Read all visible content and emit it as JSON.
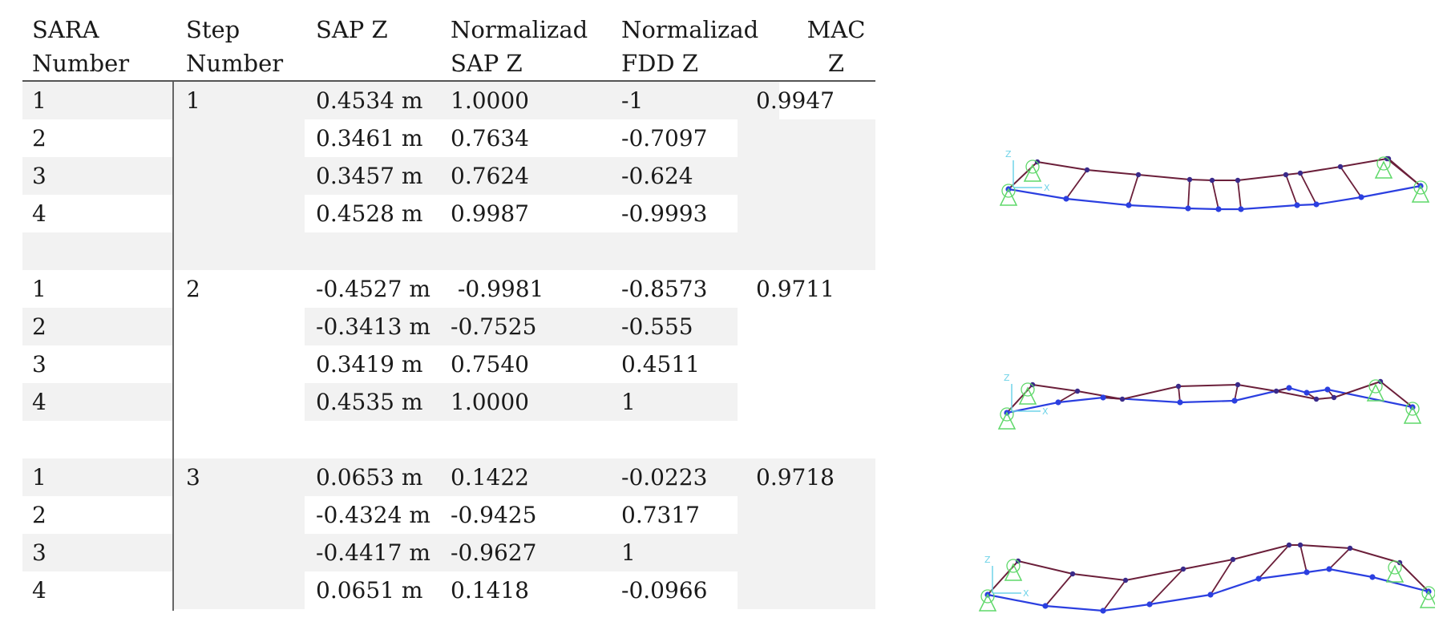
{
  "headers": [
    {
      "label": "SARA\nNumber"
    },
    {
      "label": "Step\nNumber"
    },
    {
      "label": "SAP Z"
    },
    {
      "label": "Normalizad\nSAP Z"
    },
    {
      "label": "Normalizad\nFDD Z"
    },
    {
      "label": "MAC\nZ"
    }
  ],
  "rows": [
    {
      "sara": "1",
      "step": "1",
      "sap": "0.4534 m",
      "nsap": "1.0000",
      "nfdd": "-1",
      "mac": "0.9947"
    },
    {
      "sara": "2",
      "step": "",
      "sap": "0.3461 m",
      "nsap": "0.7634",
      "nfdd": "-0.7097",
      "mac": ""
    },
    {
      "sara": "3",
      "step": "",
      "sap": "0.3457 m",
      "nsap": "0.7624",
      "nfdd": "-0.624",
      "mac": ""
    },
    {
      "sara": "4",
      "step": "",
      "sap": "0.4528 m",
      "nsap": "0.9987",
      "nfdd": "-0.9993",
      "mac": ""
    },
    {
      "sara": "",
      "step": "",
      "sap": "",
      "nsap": "",
      "nfdd": "",
      "mac": ""
    },
    {
      "sara": "1",
      "step": "2",
      "sap": "-0.4527 m",
      "nsap": " -0.9981",
      "nfdd": "-0.8573",
      "mac": "0.9711"
    },
    {
      "sara": "2",
      "step": "",
      "sap": "-0.3413 m",
      "nsap": "-0.7525",
      "nfdd": "-0.555",
      "mac": ""
    },
    {
      "sara": "3",
      "step": "",
      "sap": "0.3419 m",
      "nsap": "0.7540",
      "nfdd": "0.4511",
      "mac": ""
    },
    {
      "sara": "4",
      "step": "",
      "sap": "0.4535 m",
      "nsap": "1.0000",
      "nfdd": "1",
      "mac": ""
    },
    {
      "sara": "",
      "step": "",
      "sap": "",
      "nsap": "",
      "nfdd": "",
      "mac": ""
    },
    {
      "sara": "1",
      "step": "3",
      "sap": "0.0653 m",
      "nsap": "0.1422",
      "nfdd": "-0.0223",
      "mac": "0.9718"
    },
    {
      "sara": "2",
      "step": "",
      "sap": "-0.4324 m",
      "nsap": "-0.9425",
      "nfdd": "0.7317",
      "mac": ""
    },
    {
      "sara": "3",
      "step": "",
      "sap": "-0.4417 m",
      "nsap": "-0.9627",
      "nfdd": "1",
      "mac": ""
    },
    {
      "sara": "4",
      "step": "",
      "sap": "0.0651 m",
      "nsap": "0.1418",
      "nfdd": "-0.0966",
      "mac": ""
    }
  ],
  "models": [
    {
      "mode": 1,
      "axis_z": "Z",
      "axis_x": "X"
    },
    {
      "mode": 2,
      "axis_z": "Z",
      "axis_x": "X"
    },
    {
      "mode": 3,
      "axis_z": "Z",
      "axis_x": "X"
    }
  ],
  "colors": {
    "shade": "#f2f2f2",
    "beam_blue": "#2b3fe0",
    "beam_maroon": "#6b1f3a",
    "support_green": "#5fd86a",
    "axis_cyan": "#6fd3e8"
  }
}
